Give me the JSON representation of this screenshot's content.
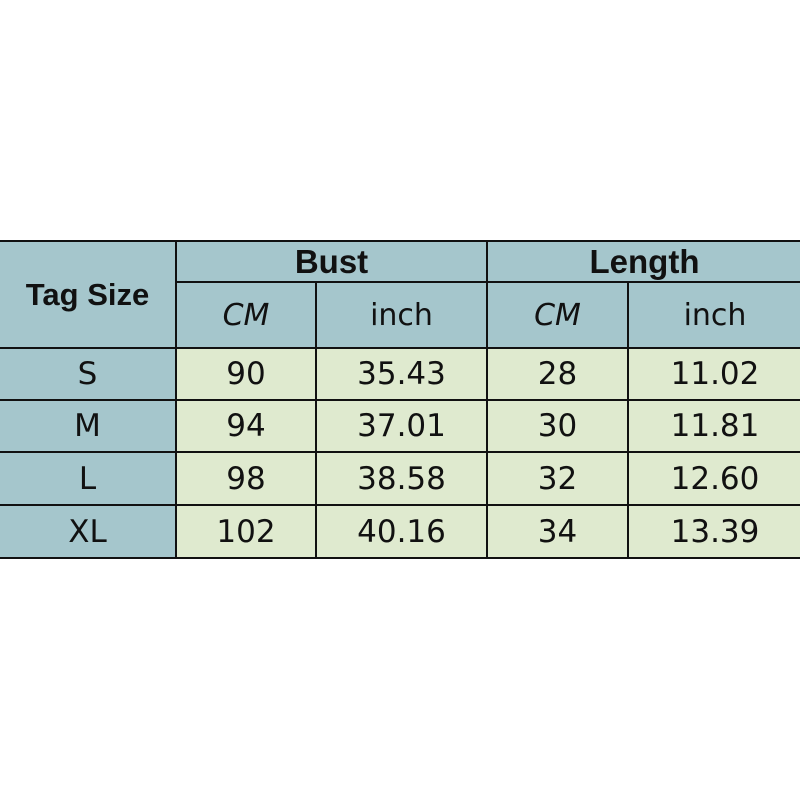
{
  "table": {
    "tag_size_label": "Tag Size",
    "groups": [
      "Bust",
      "Length"
    ],
    "units": [
      "CM",
      "inch",
      "CM",
      "inch"
    ],
    "rows": [
      {
        "size": "S",
        "values": [
          "90",
          "35.43",
          "28",
          "11.02"
        ]
      },
      {
        "size": "M",
        "values": [
          "94",
          "37.01",
          "30",
          "11.81"
        ]
      },
      {
        "size": "L",
        "values": [
          "98",
          "38.58",
          "32",
          "12.60"
        ]
      },
      {
        "size": "XL",
        "values": [
          "102",
          "40.16",
          "34",
          "13.39"
        ]
      }
    ]
  },
  "colors": {
    "header": "#a5c6cc",
    "body": "#dfeacf",
    "border": "#111111"
  }
}
